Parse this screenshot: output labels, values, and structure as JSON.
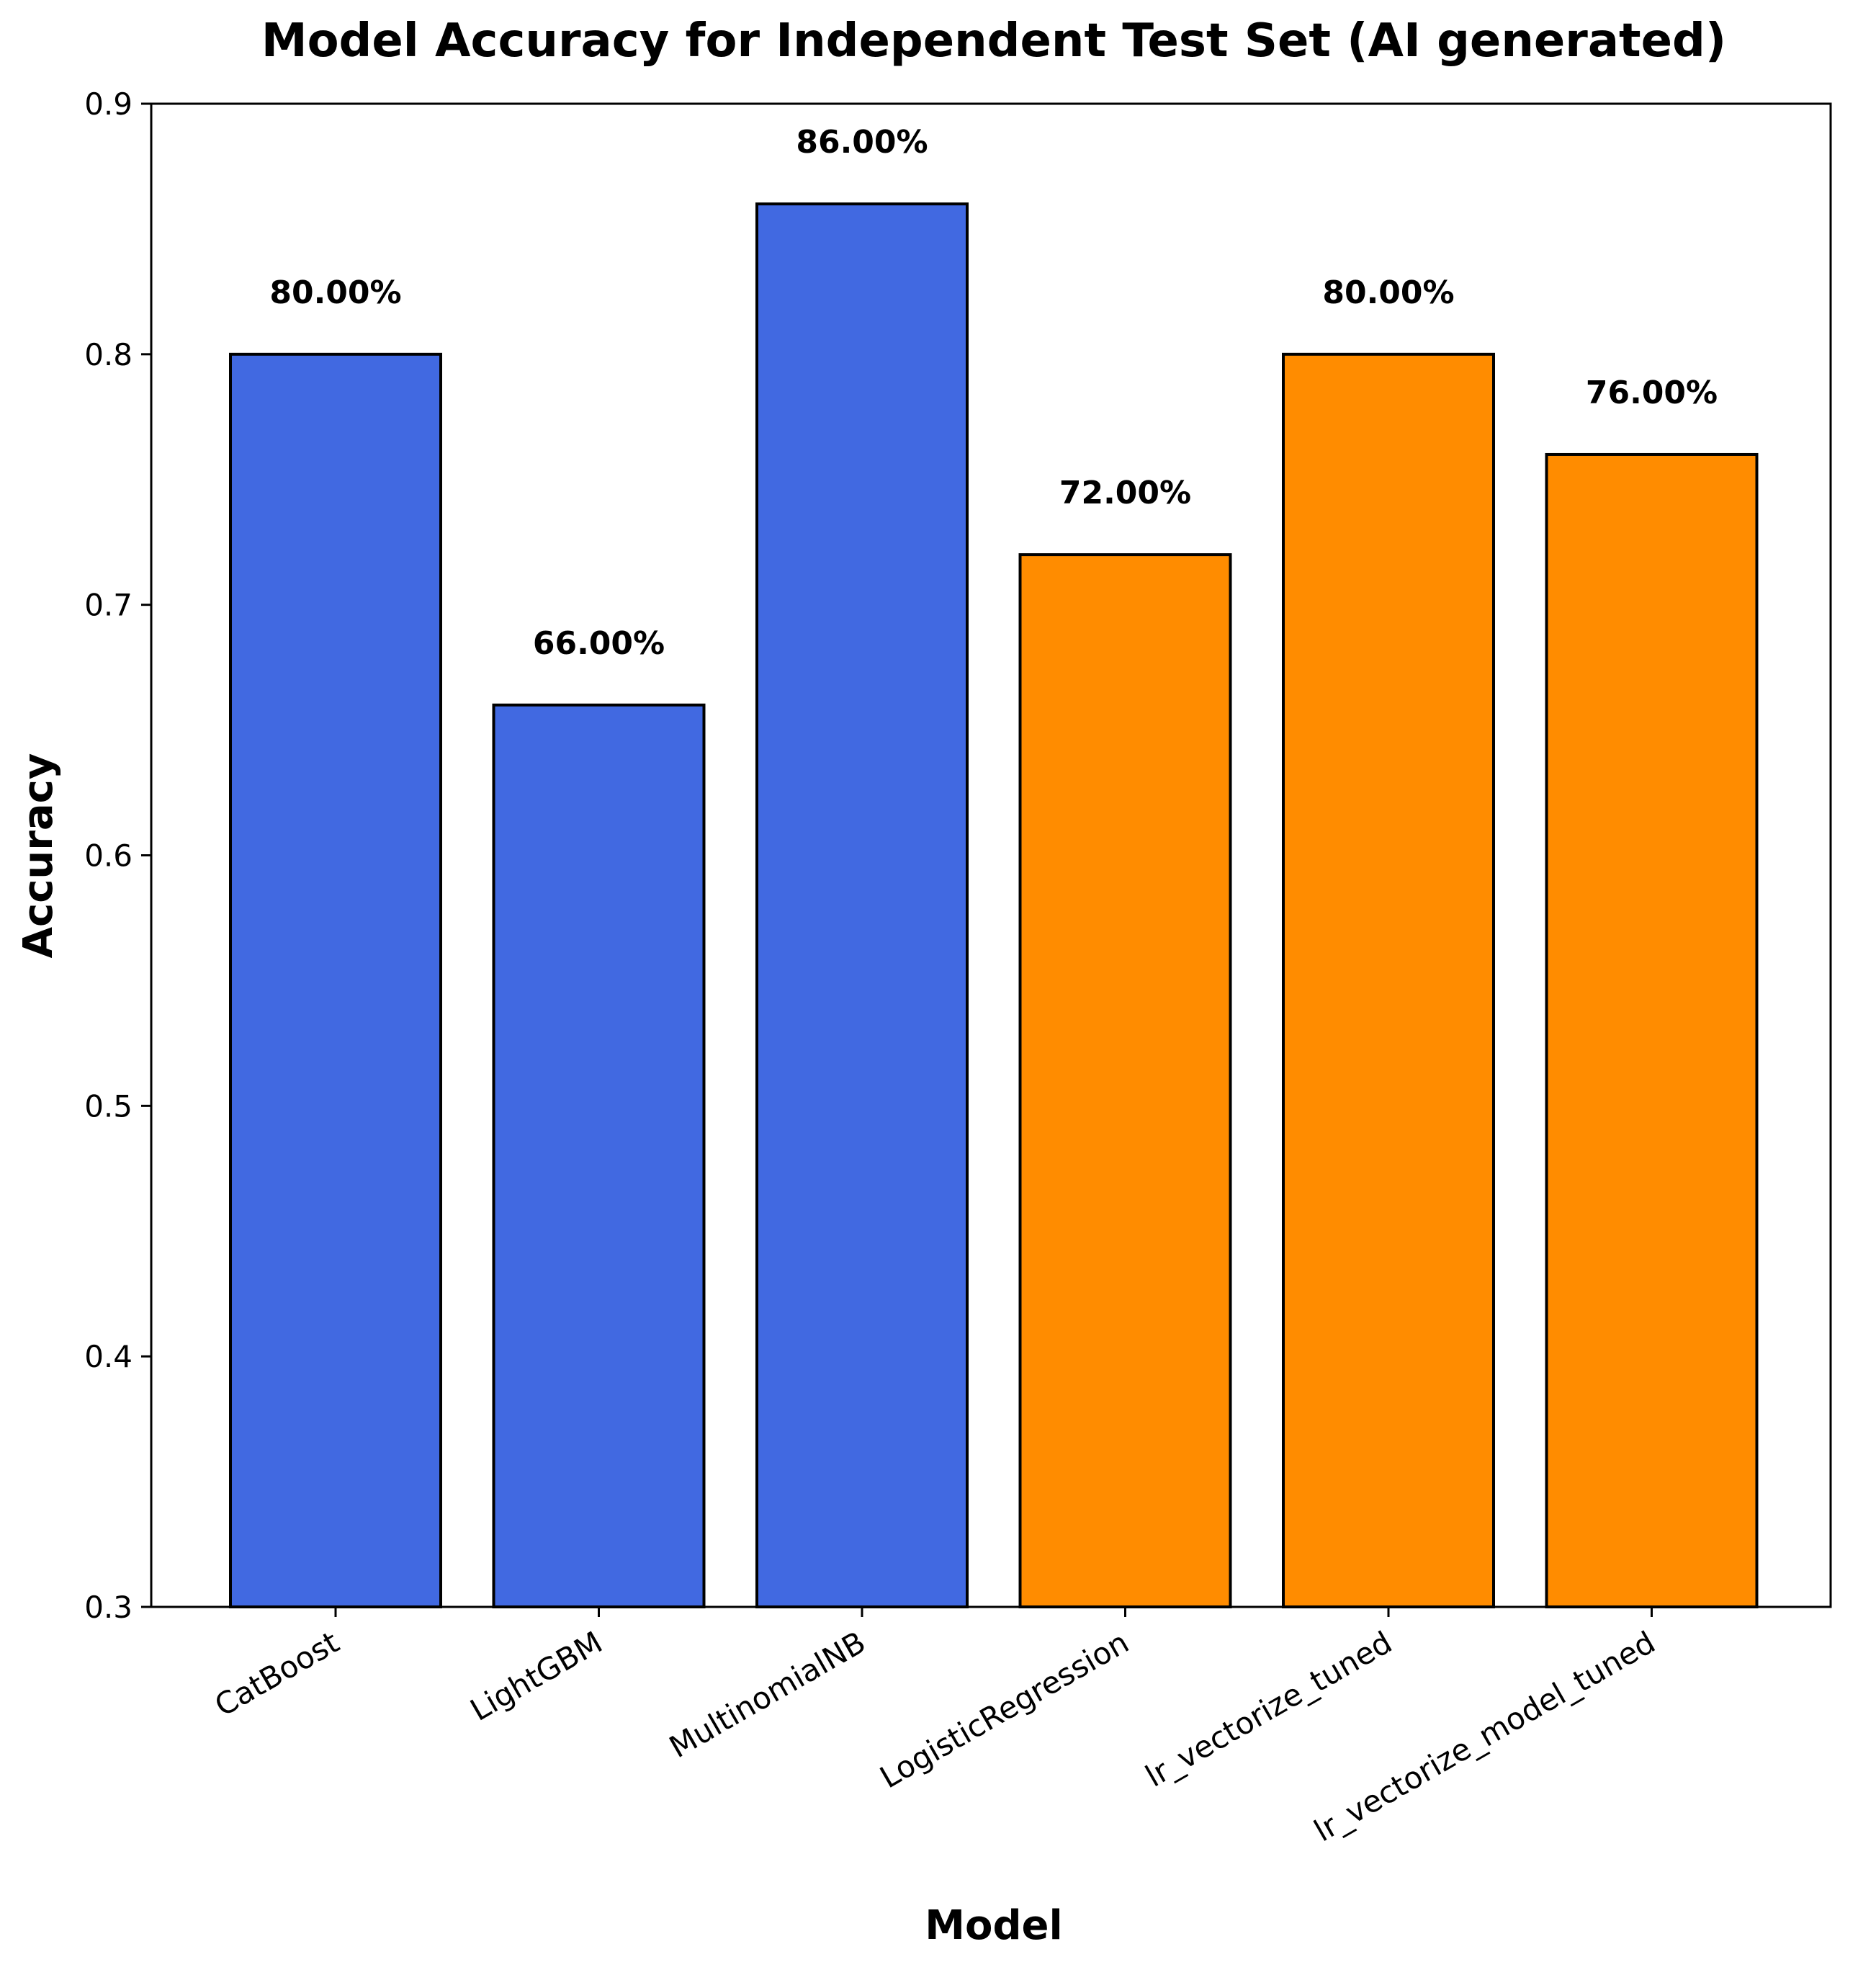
{
  "chart_data": {
    "type": "bar",
    "title": "Model Accuracy for Independent Test Set (AI generated)",
    "xlabel": "Model",
    "ylabel": "Accuracy",
    "categories": [
      "CatBoost",
      "LightGBM",
      "MultinomialNB",
      "LogisticRegression",
      "lr_vectorize_tuned",
      "lr_vectorize_model_tuned"
    ],
    "values": [
      0.8,
      0.66,
      0.86,
      0.72,
      0.8,
      0.76
    ],
    "data_labels": [
      "80.00%",
      "66.00%",
      "86.00%",
      "72.00%",
      "80.00%",
      "76.00%"
    ],
    "bar_colors": [
      "#4169e1",
      "#4169e1",
      "#4169e1",
      "#ff8c00",
      "#ff8c00",
      "#ff8c00"
    ],
    "edge_color": "#000000",
    "ylim": [
      0.3,
      0.9
    ],
    "yticks": [
      0.3,
      0.4,
      0.5,
      0.6,
      0.7,
      0.8,
      0.9
    ],
    "ytick_labels": [
      "0.3",
      "0.4",
      "0.5",
      "0.6",
      "0.7",
      "0.8",
      "0.9"
    ],
    "grid": false,
    "legend": false
  }
}
